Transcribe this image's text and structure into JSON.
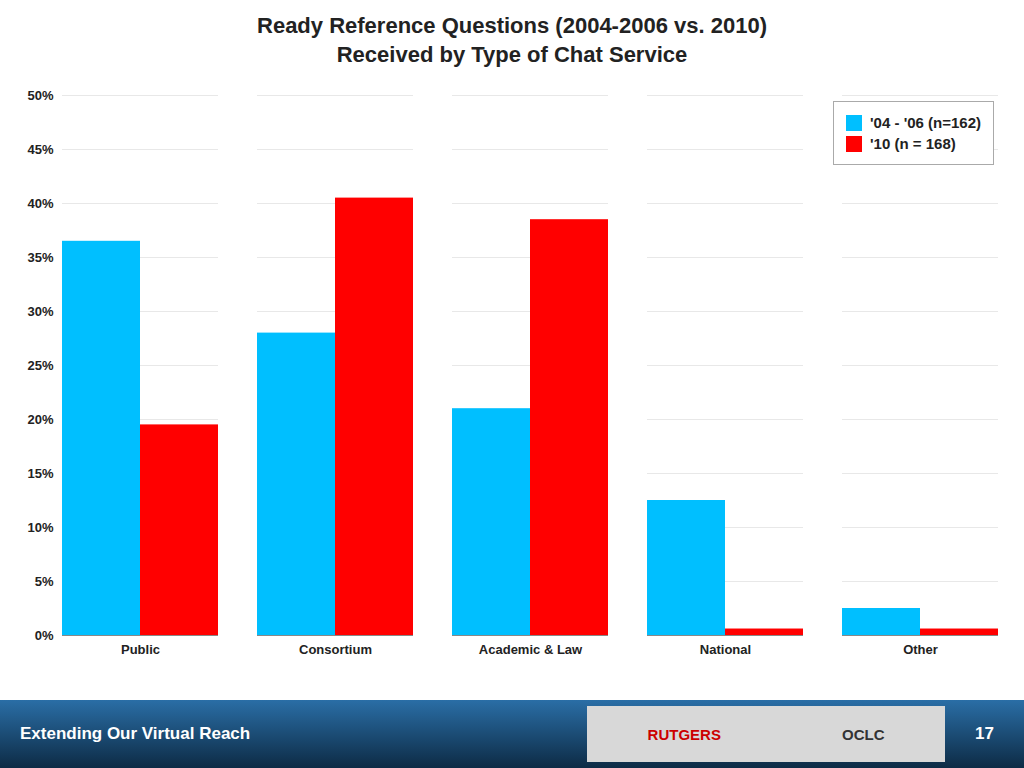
{
  "chart_data": {
    "type": "bar",
    "title": "Ready Reference Questions (2004-2006 vs. 2010)",
    "subtitle": "Received by Type of Chat Service",
    "categories": [
      "Public",
      "Consortium",
      "Academic & Law",
      "National",
      "Other"
    ],
    "series": [
      {
        "name": "'04 - '06 (n=162)",
        "color": "#00BFFF",
        "values": [
          36.5,
          28.0,
          21.0,
          12.5,
          2.5
        ]
      },
      {
        "name": "'10 (n = 168)",
        "color": "#FF0000",
        "values": [
          19.5,
          40.5,
          38.5,
          0.6,
          0.6
        ]
      }
    ],
    "ylim": [
      0,
      50
    ],
    "yticks": [
      {
        "value": 0,
        "label": "0%"
      },
      {
        "value": 5,
        "label": "5%"
      },
      {
        "value": 10,
        "label": "10%"
      },
      {
        "value": 15,
        "label": "15%"
      },
      {
        "value": 20,
        "label": "20%"
      },
      {
        "value": 25,
        "label": "25%"
      },
      {
        "value": 30,
        "label": "30%"
      },
      {
        "value": 35,
        "label": "35%"
      },
      {
        "value": 40,
        "label": "40%"
      },
      {
        "value": 45,
        "label": "45%"
      },
      {
        "value": 50,
        "label": "50%"
      }
    ],
    "grid": true,
    "legend": "upper right",
    "annotations": [
      {
        "text": "Extending Our Virtual Reach"
      },
      {
        "text": "RUTGERS",
        "color": "#CC0000"
      },
      {
        "text": "OCLC",
        "color": "#333333"
      },
      {
        "text": "17"
      }
    ]
  }
}
